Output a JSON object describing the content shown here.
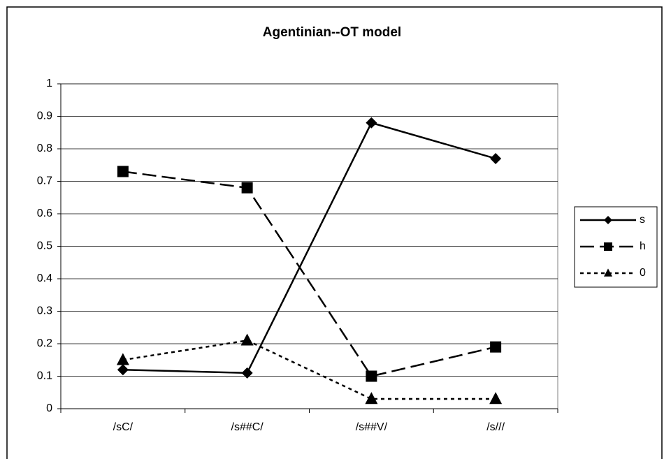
{
  "chart_data": {
    "type": "line",
    "title": "Agentinian--OT model",
    "categories": [
      "/sC/",
      "/s##C/",
      "/s##V/",
      "/s///"
    ],
    "series": [
      {
        "name": "s",
        "color": "#000000",
        "style": "solid",
        "marker": "diamond",
        "values": [
          0.12,
          0.11,
          0.88,
          0.77
        ]
      },
      {
        "name": "h",
        "color": "#000000",
        "style": "dashed",
        "marker": "square",
        "values": [
          0.73,
          0.68,
          0.1,
          0.19
        ]
      },
      {
        "name": "0",
        "color": "#000000",
        "style": "dotted",
        "marker": "triangle",
        "values": [
          0.15,
          0.21,
          0.03,
          0.03
        ]
      }
    ],
    "ylim": [
      0,
      1
    ],
    "yticks": [
      0,
      0.1,
      0.2,
      0.3,
      0.4,
      0.5,
      0.6,
      0.7,
      0.8,
      0.9,
      1
    ],
    "grid": true,
    "legend": "right"
  }
}
